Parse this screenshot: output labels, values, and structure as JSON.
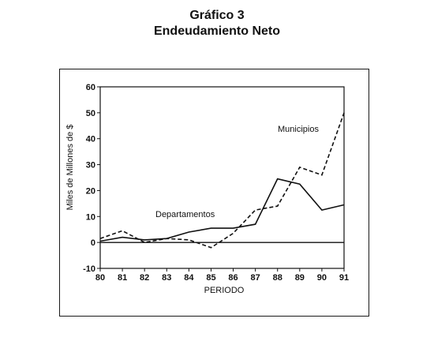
{
  "chart_data": {
    "type": "line",
    "title": "Gráfico 3",
    "subtitle": "Endeudamiento Neto",
    "xlabel": "PERIODO",
    "ylabel": "Miles de Millones de $",
    "x": [
      "80",
      "81",
      "82",
      "83",
      "84",
      "85",
      "86",
      "87",
      "88",
      "89",
      "90",
      "91"
    ],
    "ylim": [
      -10,
      60
    ],
    "yticks": [
      -10,
      0,
      10,
      20,
      30,
      40,
      50,
      60
    ],
    "zero_line": true,
    "series": [
      {
        "name": "Departamentos",
        "style": "solid",
        "values": [
          0.5,
          2,
          1,
          1.5,
          4,
          5.5,
          5.5,
          7,
          24.5,
          22.5,
          12.5,
          14.5
        ]
      },
      {
        "name": "Municipios",
        "style": "dashed",
        "values": [
          1.5,
          4.5,
          0,
          1.5,
          1,
          -2,
          3.5,
          12.5,
          14,
          29,
          26,
          50
        ]
      }
    ],
    "line_color": "#111111"
  }
}
